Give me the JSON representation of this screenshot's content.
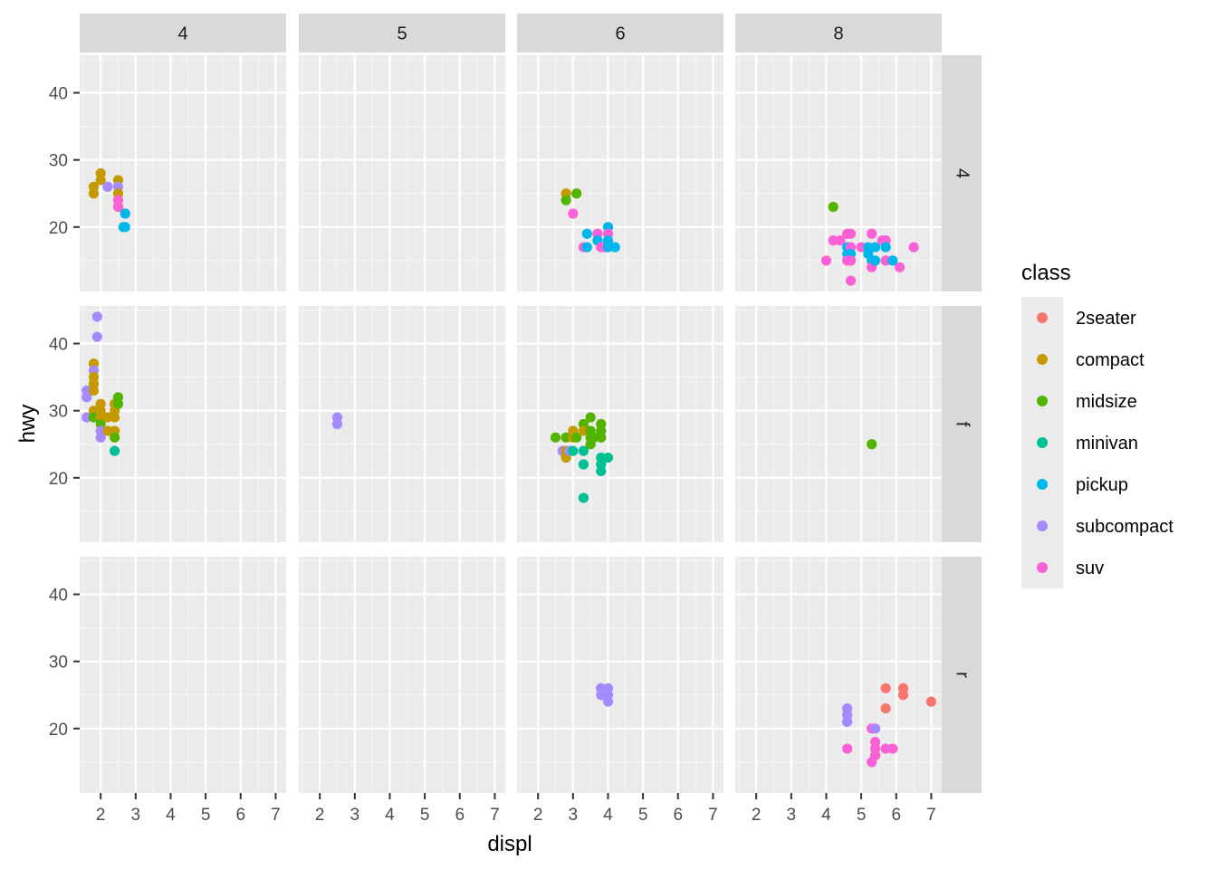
{
  "chart_data": {
    "type": "scatter",
    "xlabel": "displ",
    "ylabel": "hwy",
    "xlim": [
      1.4,
      7.3
    ],
    "ylim": [
      10.4,
      45.6
    ],
    "x_ticks": [
      2,
      3,
      4,
      5,
      6,
      7
    ],
    "y_ticks": [
      20,
      30,
      40
    ],
    "grid": true,
    "facet_cols_label": [
      "4",
      "5",
      "6",
      "8"
    ],
    "facet_rows_label": [
      "4",
      "f",
      "r"
    ],
    "legend": {
      "title": "class",
      "position": "right",
      "items": [
        {
          "name": "2seater",
          "color": "#F8766D"
        },
        {
          "name": "compact",
          "color": "#C49A00"
        },
        {
          "name": "midsize",
          "color": "#53B400"
        },
        {
          "name": "minivan",
          "color": "#00C094"
        },
        {
          "name": "pickup",
          "color": "#00B6EB"
        },
        {
          "name": "subcompact",
          "color": "#A58AFF"
        },
        {
          "name": "suv",
          "color": "#FB61D7"
        }
      ]
    },
    "panels": [
      {
        "row": "4",
        "col": "4",
        "points": [
          {
            "x": 1.8,
            "y": 26,
            "class": "compact"
          },
          {
            "x": 1.8,
            "y": 25,
            "class": "compact"
          },
          {
            "x": 2.0,
            "y": 28,
            "class": "compact"
          },
          {
            "x": 2.0,
            "y": 27,
            "class": "compact"
          },
          {
            "x": 2.2,
            "y": 26,
            "class": "subcompact"
          },
          {
            "x": 2.5,
            "y": 27,
            "class": "compact"
          },
          {
            "x": 2.5,
            "y": 26,
            "class": "subcompact"
          },
          {
            "x": 2.5,
            "y": 25,
            "class": "compact"
          },
          {
            "x": 2.5,
            "y": 24,
            "class": "suv"
          },
          {
            "x": 2.5,
            "y": 23,
            "class": "suv"
          },
          {
            "x": 2.7,
            "y": 22,
            "class": "pickup"
          },
          {
            "x": 2.7,
            "y": 20,
            "class": "pickup"
          },
          {
            "x": 2.65,
            "y": 20,
            "class": "pickup"
          }
        ]
      },
      {
        "row": "4",
        "col": "5",
        "points": []
      },
      {
        "row": "4",
        "col": "6",
        "points": [
          {
            "x": 2.8,
            "y": 25,
            "class": "compact"
          },
          {
            "x": 2.8,
            "y": 24,
            "class": "midsize"
          },
          {
            "x": 3.1,
            "y": 25,
            "class": "midsize"
          },
          {
            "x": 3.0,
            "y": 22,
            "class": "suv"
          },
          {
            "x": 3.3,
            "y": 17,
            "class": "suv"
          },
          {
            "x": 3.4,
            "y": 17,
            "class": "pickup"
          },
          {
            "x": 3.4,
            "y": 19,
            "class": "pickup"
          },
          {
            "x": 3.7,
            "y": 19,
            "class": "suv"
          },
          {
            "x": 3.7,
            "y": 18,
            "class": "pickup"
          },
          {
            "x": 3.8,
            "y": 17,
            "class": "suv"
          },
          {
            "x": 3.9,
            "y": 17,
            "class": "suv"
          },
          {
            "x": 4.0,
            "y": 20,
            "class": "pickup"
          },
          {
            "x": 4.0,
            "y": 19,
            "class": "suv"
          },
          {
            "x": 4.0,
            "y": 18,
            "class": "pickup"
          },
          {
            "x": 4.0,
            "y": 17,
            "class": "pickup"
          },
          {
            "x": 4.2,
            "y": 17,
            "class": "pickup"
          }
        ]
      },
      {
        "row": "4",
        "col": "8",
        "points": [
          {
            "x": 4.2,
            "y": 23,
            "class": "midsize"
          },
          {
            "x": 4.0,
            "y": 15,
            "class": "suv"
          },
          {
            "x": 4.2,
            "y": 18,
            "class": "suv"
          },
          {
            "x": 4.4,
            "y": 18,
            "class": "suv"
          },
          {
            "x": 4.6,
            "y": 19,
            "class": "suv"
          },
          {
            "x": 4.7,
            "y": 19,
            "class": "suv"
          },
          {
            "x": 4.6,
            "y": 17,
            "class": "pickup"
          },
          {
            "x": 4.6,
            "y": 16,
            "class": "pickup"
          },
          {
            "x": 4.7,
            "y": 17,
            "class": "suv"
          },
          {
            "x": 4.7,
            "y": 16,
            "class": "pickup"
          },
          {
            "x": 4.7,
            "y": 15,
            "class": "suv"
          },
          {
            "x": 4.6,
            "y": 15,
            "class": "suv"
          },
          {
            "x": 4.7,
            "y": 12,
            "class": "suv"
          },
          {
            "x": 5.0,
            "y": 17,
            "class": "suv"
          },
          {
            "x": 5.2,
            "y": 17,
            "class": "pickup"
          },
          {
            "x": 5.2,
            "y": 16,
            "class": "pickup"
          },
          {
            "x": 5.3,
            "y": 19,
            "class": "suv"
          },
          {
            "x": 5.3,
            "y": 15,
            "class": "pickup"
          },
          {
            "x": 5.3,
            "y": 14,
            "class": "suv"
          },
          {
            "x": 5.4,
            "y": 17,
            "class": "pickup"
          },
          {
            "x": 5.4,
            "y": 15,
            "class": "pickup"
          },
          {
            "x": 5.6,
            "y": 18,
            "class": "suv"
          },
          {
            "x": 5.7,
            "y": 18,
            "class": "suv"
          },
          {
            "x": 5.7,
            "y": 17,
            "class": "pickup"
          },
          {
            "x": 5.7,
            "y": 15,
            "class": "suv"
          },
          {
            "x": 5.9,
            "y": 15,
            "class": "pickup"
          },
          {
            "x": 6.1,
            "y": 14,
            "class": "suv"
          },
          {
            "x": 6.5,
            "y": 17,
            "class": "suv"
          }
        ]
      },
      {
        "row": "f",
        "col": "4",
        "points": [
          {
            "x": 1.6,
            "y": 33,
            "class": "subcompact"
          },
          {
            "x": 1.6,
            "y": 32,
            "class": "subcompact"
          },
          {
            "x": 1.6,
            "y": 29,
            "class": "subcompact"
          },
          {
            "x": 1.8,
            "y": 37,
            "class": "compact"
          },
          {
            "x": 1.8,
            "y": 36,
            "class": "subcompact"
          },
          {
            "x": 1.8,
            "y": 35,
            "class": "compact"
          },
          {
            "x": 1.8,
            "y": 34,
            "class": "compact"
          },
          {
            "x": 1.8,
            "y": 33,
            "class": "compact"
          },
          {
            "x": 1.8,
            "y": 30,
            "class": "compact"
          },
          {
            "x": 1.8,
            "y": 29,
            "class": "midsize"
          },
          {
            "x": 1.9,
            "y": 44,
            "class": "subcompact"
          },
          {
            "x": 1.9,
            "y": 41,
            "class": "subcompact"
          },
          {
            "x": 1.9,
            "y": 29,
            "class": "midsize"
          },
          {
            "x": 2.0,
            "y": 31,
            "class": "compact"
          },
          {
            "x": 2.0,
            "y": 30,
            "class": "compact"
          },
          {
            "x": 2.0,
            "y": 29,
            "class": "compact"
          },
          {
            "x": 2.0,
            "y": 28,
            "class": "midsize"
          },
          {
            "x": 2.0,
            "y": 27,
            "class": "subcompact"
          },
          {
            "x": 2.0,
            "y": 26,
            "class": "subcompact"
          },
          {
            "x": 2.2,
            "y": 29,
            "class": "compact"
          },
          {
            "x": 2.2,
            "y": 27,
            "class": "compact"
          },
          {
            "x": 2.4,
            "y": 31,
            "class": "compact"
          },
          {
            "x": 2.4,
            "y": 30,
            "class": "compact"
          },
          {
            "x": 2.4,
            "y": 29,
            "class": "compact"
          },
          {
            "x": 2.4,
            "y": 27,
            "class": "compact"
          },
          {
            "x": 2.4,
            "y": 26,
            "class": "midsize"
          },
          {
            "x": 2.4,
            "y": 24,
            "class": "minivan"
          },
          {
            "x": 2.5,
            "y": 32,
            "class": "midsize"
          },
          {
            "x": 2.5,
            "y": 31,
            "class": "midsize"
          }
        ]
      },
      {
        "row": "f",
        "col": "5",
        "points": [
          {
            "x": 2.5,
            "y": 29,
            "class": "subcompact"
          },
          {
            "x": 2.5,
            "y": 28,
            "class": "subcompact"
          }
        ]
      },
      {
        "row": "f",
        "col": "6",
        "points": [
          {
            "x": 2.5,
            "y": 26,
            "class": "midsize"
          },
          {
            "x": 2.7,
            "y": 24,
            "class": "subcompact"
          },
          {
            "x": 2.8,
            "y": 26,
            "class": "midsize"
          },
          {
            "x": 2.8,
            "y": 24,
            "class": "compact"
          },
          {
            "x": 2.8,
            "y": 23,
            "class": "compact"
          },
          {
            "x": 2.9,
            "y": 24,
            "class": "subcompact"
          },
          {
            "x": 3.0,
            "y": 27,
            "class": "compact"
          },
          {
            "x": 3.0,
            "y": 26,
            "class": "compact"
          },
          {
            "x": 3.0,
            "y": 24,
            "class": "minivan"
          },
          {
            "x": 3.1,
            "y": 26,
            "class": "midsize"
          },
          {
            "x": 3.3,
            "y": 28,
            "class": "midsize"
          },
          {
            "x": 3.3,
            "y": 27,
            "class": "compact"
          },
          {
            "x": 3.3,
            "y": 24,
            "class": "minivan"
          },
          {
            "x": 3.3,
            "y": 22,
            "class": "minivan"
          },
          {
            "x": 3.3,
            "y": 17,
            "class": "minivan"
          },
          {
            "x": 3.5,
            "y": 29,
            "class": "midsize"
          },
          {
            "x": 3.5,
            "y": 27,
            "class": "midsize"
          },
          {
            "x": 3.5,
            "y": 26,
            "class": "midsize"
          },
          {
            "x": 3.5,
            "y": 25,
            "class": "midsize"
          },
          {
            "x": 3.6,
            "y": 26,
            "class": "midsize"
          },
          {
            "x": 3.8,
            "y": 28,
            "class": "midsize"
          },
          {
            "x": 3.8,
            "y": 27,
            "class": "midsize"
          },
          {
            "x": 3.8,
            "y": 26,
            "class": "midsize"
          },
          {
            "x": 3.8,
            "y": 23,
            "class": "minivan"
          },
          {
            "x": 3.8,
            "y": 22,
            "class": "minivan"
          },
          {
            "x": 3.8,
            "y": 21,
            "class": "minivan"
          },
          {
            "x": 4.0,
            "y": 23,
            "class": "minivan"
          }
        ]
      },
      {
        "row": "f",
        "col": "8",
        "points": [
          {
            "x": 5.3,
            "y": 25,
            "class": "midsize"
          }
        ]
      },
      {
        "row": "r",
        "col": "4",
        "points": []
      },
      {
        "row": "r",
        "col": "5",
        "points": []
      },
      {
        "row": "r",
        "col": "6",
        "points": [
          {
            "x": 3.8,
            "y": 26,
            "class": "subcompact"
          },
          {
            "x": 3.8,
            "y": 25,
            "class": "subcompact"
          },
          {
            "x": 3.8,
            "y": 26,
            "class": "subcompact"
          },
          {
            "x": 4.0,
            "y": 26,
            "class": "subcompact"
          },
          {
            "x": 4.0,
            "y": 25,
            "class": "subcompact"
          },
          {
            "x": 4.0,
            "y": 24,
            "class": "subcompact"
          }
        ]
      },
      {
        "row": "r",
        "col": "8",
        "points": [
          {
            "x": 4.6,
            "y": 23,
            "class": "subcompact"
          },
          {
            "x": 4.6,
            "y": 22,
            "class": "subcompact"
          },
          {
            "x": 4.6,
            "y": 21,
            "class": "subcompact"
          },
          {
            "x": 4.6,
            "y": 17,
            "class": "suv"
          },
          {
            "x": 5.3,
            "y": 20,
            "class": "suv"
          },
          {
            "x": 5.4,
            "y": 20,
            "class": "subcompact"
          },
          {
            "x": 5.4,
            "y": 18,
            "class": "suv"
          },
          {
            "x": 5.4,
            "y": 17,
            "class": "suv"
          },
          {
            "x": 5.4,
            "y": 16,
            "class": "suv"
          },
          {
            "x": 5.3,
            "y": 15,
            "class": "suv"
          },
          {
            "x": 5.7,
            "y": 26,
            "class": "2seater"
          },
          {
            "x": 5.7,
            "y": 23,
            "class": "2seater"
          },
          {
            "x": 5.7,
            "y": 17,
            "class": "suv"
          },
          {
            "x": 5.9,
            "y": 17,
            "class": "suv"
          },
          {
            "x": 6.2,
            "y": 26,
            "class": "2seater"
          },
          {
            "x": 6.2,
            "y": 25,
            "class": "2seater"
          },
          {
            "x": 7.0,
            "y": 24,
            "class": "2seater"
          }
        ]
      }
    ]
  }
}
